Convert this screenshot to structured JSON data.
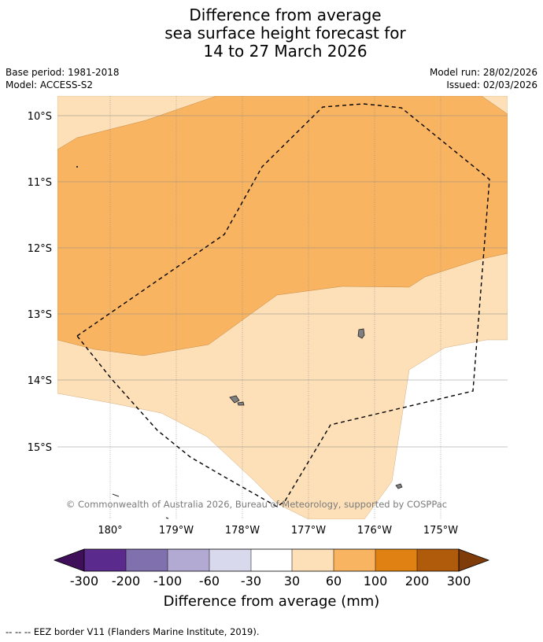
{
  "title": {
    "line1": "Difference from average",
    "line2": "sea surface height forecast for",
    "line3": "14 to 27 March 2026"
  },
  "meta": {
    "base_period": "Base period: 1981-2018",
    "model": "Model: ACCESS-S2",
    "model_run": "Model run: 28/02/2026",
    "issued": "Issued: 02/03/2026"
  },
  "map": {
    "lat_labels": [
      "10°S",
      "11°S",
      "12°S",
      "13°S",
      "14°S",
      "15°S"
    ],
    "lon_labels": [
      "180°",
      "179°W",
      "178°W",
      "177°W",
      "176°W",
      "175°W"
    ],
    "credit": "© Commonwealth of Australia 2026, Bureau of Meteorology, supported by COSPPac"
  },
  "colorbar": {
    "labels": [
      "-300",
      "-200",
      "-100",
      "-60",
      "-30",
      "30",
      "60",
      "100",
      "200",
      "300"
    ],
    "colors": {
      "under": "#3f0f59",
      "c1": "#5a2a8c",
      "c2": "#8070ae",
      "c3": "#b2aad3",
      "c4": "#d8d9ec",
      "c5": "#ffffff",
      "c6": "#fde0b8",
      "c7": "#f9b461",
      "c8": "#df8213",
      "c9": "#b05a0b",
      "over": "#7f3c0a"
    },
    "label": "Difference from average (mm)"
  },
  "legend": {
    "eez": "--  --  -- EEZ border V11 (Flanders Marine Institute, 2019)."
  }
}
